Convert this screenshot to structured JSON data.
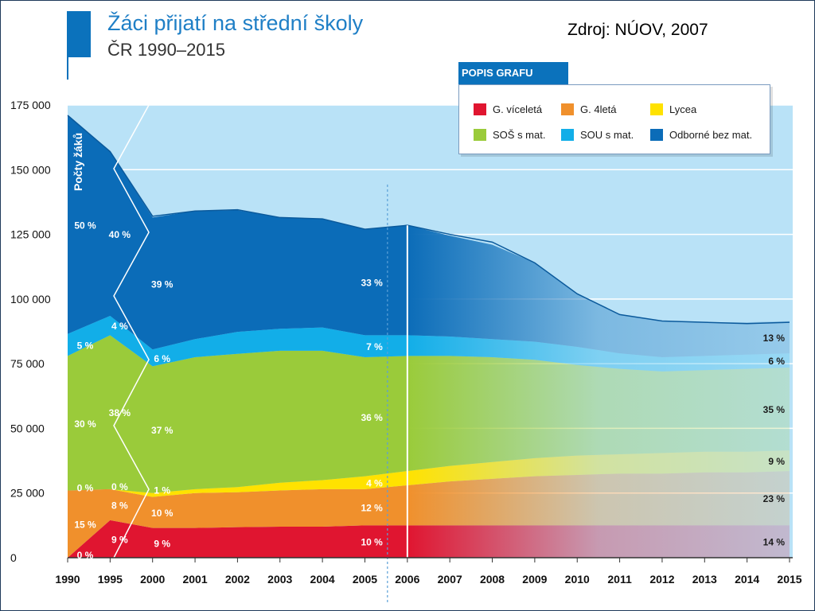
{
  "header": {
    "title": "Žáci přijatí na střední školy",
    "subtitle": "ČR 1990–2015",
    "source": "Zdroj: NÚOV, 2007",
    "accent_color": "#0b72bc"
  },
  "chart_data": {
    "type": "area",
    "stacked": true,
    "title": "Žáci přijatí na střední školy",
    "subtitle": "ČR 1990–2015",
    "ylabel": "Počty žáků",
    "xlabel": "",
    "x": [
      "1990",
      "1995",
      "2000",
      "2001",
      "2002",
      "2003",
      "2004",
      "2005",
      "2006",
      "2007",
      "2008",
      "2009",
      "2010",
      "2011",
      "2012",
      "2013",
      "2014",
      "2015"
    ],
    "ylim": [
      0,
      175000
    ],
    "yticks": [
      0,
      25000,
      50000,
      75000,
      100000,
      125000,
      150000,
      175000
    ],
    "ytick_labels": [
      "0",
      "25 000",
      "50 000",
      "75 000",
      "100 000",
      "125 000",
      "150 000",
      "175 000"
    ],
    "grid": true,
    "forecast_from": "2006",
    "legend_title": "POPIS GRAFU",
    "legend_position": "top-right",
    "series": [
      {
        "name": "G. víceletá",
        "color": "#e01530",
        "values": [
          0,
          14500,
          11500,
          11500,
          11800,
          12000,
          12000,
          12500,
          12500,
          12500,
          12500,
          12500,
          12500,
          12500,
          12500,
          12500,
          12500,
          12500
        ]
      },
      {
        "name": "G. 4letá",
        "color": "#f0902c",
        "values": [
          26000,
          12000,
          12000,
          13500,
          13500,
          14000,
          14500,
          14000,
          15500,
          17000,
          18000,
          19000,
          19500,
          20000,
          20000,
          20500,
          20500,
          21000
        ]
      },
      {
        "name": "Lycea",
        "color": "#ffe200",
        "values": [
          0,
          0,
          1500,
          1500,
          2000,
          3000,
          3500,
          5000,
          5500,
          6000,
          6500,
          7000,
          7500,
          7500,
          8000,
          8000,
          8000,
          8000
        ]
      },
      {
        "name": "SOŠ s mat.",
        "color": "#9acb3a",
        "values": [
          52000,
          59500,
          49000,
          51000,
          51500,
          51000,
          50000,
          46000,
          44500,
          42500,
          40500,
          38000,
          35000,
          33000,
          31500,
          31500,
          32000,
          32000
        ]
      },
      {
        "name": "SOU s mat.",
        "color": "#12aee8",
        "values": [
          8500,
          7500,
          6500,
          7000,
          8500,
          8500,
          9000,
          8500,
          8000,
          7500,
          7000,
          7000,
          7000,
          6000,
          5500,
          5500,
          5500,
          5500
        ]
      },
      {
        "name": "Odborné bez mat.",
        "color": "#0b6cb8",
        "values": [
          84500,
          63500,
          51000,
          49500,
          47000,
          43000,
          42000,
          41000,
          42500,
          39000,
          36500,
          30500,
          20500,
          15000,
          14000,
          13000,
          12500,
          12500
        ]
      }
    ],
    "total_line": [
      171000,
      157000,
      132000,
      134000,
      134500,
      131500,
      131000,
      127000,
      128500,
      125000,
      122000,
      114000,
      102000,
      94000,
      91500,
      91000,
      90500,
      91000
    ],
    "annotations": {
      "1990": [
        "0 %",
        "15 %",
        "0 %",
        "30 %",
        "5 %",
        "50 %"
      ],
      "1995": [
        "9 %",
        "8 %",
        "0 %",
        "38 %",
        "4 %",
        "40 %"
      ],
      "2000": [
        "9 %",
        "10 %",
        "1 %",
        "37 %",
        "6 %",
        "39 %"
      ],
      "2005": [
        "10 %",
        "12 %",
        "4 %",
        "36 %",
        "7 %",
        "33 %"
      ],
      "2015": [
        "14 %",
        "23 %",
        "9 %",
        "35 %",
        "6 %",
        "13 %"
      ]
    }
  }
}
